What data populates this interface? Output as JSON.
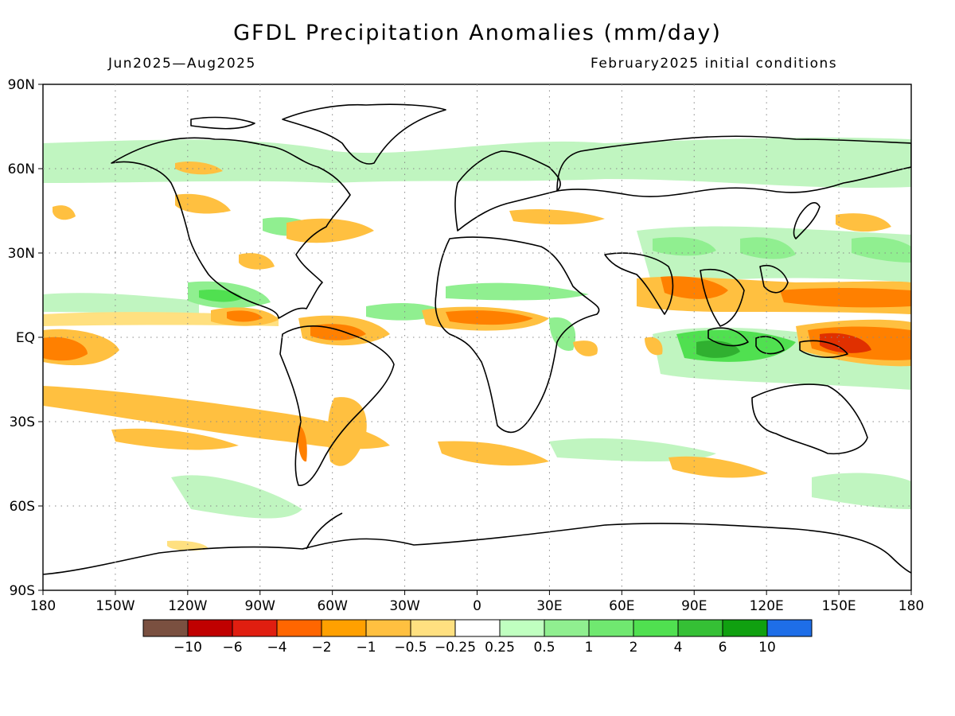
{
  "title": "GFDL Precipitation Anomalies (mm/day)",
  "period": "Jun2025—Aug2025",
  "init": "February2025 initial conditions",
  "map": {
    "lat_labels": [
      "90N",
      "60N",
      "30N",
      "EQ",
      "30S",
      "60S",
      "90S"
    ],
    "lon_labels": [
      "180",
      "150W",
      "120W",
      "90W",
      "60W",
      "30W",
      "0",
      "30E",
      "60E",
      "90E",
      "120E",
      "150E",
      "180"
    ],
    "lat_range": [
      -90,
      90
    ],
    "lon_range": [
      -180,
      180
    ],
    "grid": true
  },
  "colorbar": {
    "ticks": [
      "−10",
      "−6",
      "−4",
      "−2",
      "−1",
      "−0.5",
      "−0.25",
      "0.25",
      "0.5",
      "1",
      "2",
      "4",
      "6",
      "10"
    ],
    "colors": [
      "#7a5040",
      "#c00000",
      "#e01e10",
      "#ff6600",
      "#ffa000",
      "#ffc040",
      "#ffe080",
      "#ffffff",
      "#c0ffc0",
      "#90ef90",
      "#70e870",
      "#50e050",
      "#35c035",
      "#10a010",
      "#1e6ee8"
    ]
  },
  "colors": {
    "dry_strong": "#e03000",
    "dry_mid": "#ff8000",
    "dry_light": "#ffc040",
    "dry_faint": "#ffe080",
    "wet_faint": "#c0f5c0",
    "wet_light": "#90ef90",
    "wet_mid": "#50e050",
    "wet_strong": "#30b030",
    "coast": "#000000"
  }
}
